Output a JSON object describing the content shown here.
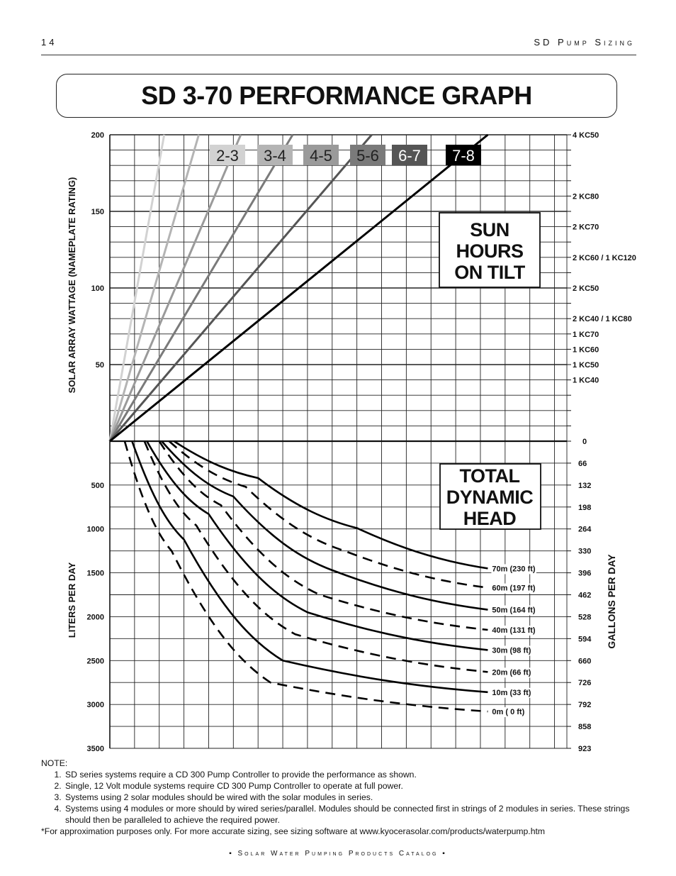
{
  "header": {
    "page_number": "14",
    "section": "SD Pump Sizing"
  },
  "title": "SD 3-70 PERFORMANCE GRAPH",
  "chart_data": [
    {
      "type": "line",
      "panel": "upper",
      "ylabel": "SOLAR ARRAY WATTAGE (NAMEPLATE RATING)",
      "y_ticks": [
        "200",
        "150",
        "100",
        "50"
      ],
      "ylim": [
        0,
        200
      ],
      "right_labels": [
        {
          "value": 200,
          "label": "4 KC50"
        },
        {
          "value": 160,
          "label": "2 KC80"
        },
        {
          "value": 140,
          "label": "2 KC70"
        },
        {
          "value": 120,
          "label": "2 KC60 / 1 KC120"
        },
        {
          "value": 100,
          "label": "2 KC50"
        },
        {
          "value": 80,
          "label": "2 KC40 / 1 KC80"
        },
        {
          "value": 70,
          "label": "1 KC70"
        },
        {
          "value": 60,
          "label": "1 KC60"
        },
        {
          "value": 50,
          "label": "1 KC50"
        },
        {
          "value": 40,
          "label": "1 KC40"
        }
      ],
      "legend_title": "SUN HOURS ON TILT",
      "series": [
        {
          "name": "2-3",
          "color": "#d2d2d2",
          "points": [
            [
              0,
              0
            ],
            [
              2.2,
              200
            ]
          ]
        },
        {
          "name": "3-4",
          "color": "#b4b4b4",
          "points": [
            [
              0,
              0
            ],
            [
              3.6,
              200
            ]
          ]
        },
        {
          "name": "4-5",
          "color": "#9a9a9a",
          "points": [
            [
              0,
              0
            ],
            [
              5.3,
              200
            ]
          ]
        },
        {
          "name": "5-6",
          "color": "#7a7a7a",
          "points": [
            [
              0,
              0
            ],
            [
              7.4,
              200
            ]
          ]
        },
        {
          "name": "6-7",
          "color": "#555555",
          "points": [
            [
              0,
              0
            ],
            [
              10.6,
              200
            ]
          ]
        },
        {
          "name": "7-8",
          "color": "#000000",
          "points": [
            [
              0,
              0
            ],
            [
              15.3,
              200
            ]
          ]
        }
      ],
      "grid": true,
      "x_range": [
        0,
        18.5
      ]
    },
    {
      "type": "line",
      "panel": "lower",
      "legend_title": "TOTAL DYNAMIC HEAD",
      "ylabel_left": "LITERS PER DAY",
      "ylabel_right": "GALLONS PER DAY",
      "left_ticks": [
        "500",
        "1000",
        "1500",
        "2000",
        "2500",
        "3000",
        "3500"
      ],
      "right_ticks": [
        "0",
        "66",
        "132",
        "198",
        "264",
        "330",
        "396",
        "462",
        "528",
        "594",
        "660",
        "726",
        "792",
        "858",
        "923"
      ],
      "ylim": [
        0,
        3500
      ],
      "series": [
        {
          "name": "70m (230 ft)",
          "dash": false,
          "points": [
            [
              2.6,
              0
            ],
            [
              6,
              420
            ],
            [
              10,
              990
            ],
            [
              15.3,
              1450
            ]
          ]
        },
        {
          "name": "60m (197 ft)",
          "dash": true,
          "points": [
            [
              2.4,
              0
            ],
            [
              5.5,
              520
            ],
            [
              9.5,
              1250
            ],
            [
              15.3,
              1670
            ]
          ]
        },
        {
          "name": "50m (164 ft)",
          "dash": false,
          "points": [
            [
              2.1,
              0
            ],
            [
              5,
              630
            ],
            [
              9,
              1470
            ],
            [
              15.3,
              1920
            ]
          ]
        },
        {
          "name": "40m (131 ft)",
          "dash": true,
          "points": [
            [
              2.0,
              0
            ],
            [
              4.5,
              730
            ],
            [
              8.5,
              1750
            ],
            [
              15.3,
              2150
            ]
          ]
        },
        {
          "name": "30m (98 ft)",
          "dash": false,
          "points": [
            [
              1.5,
              0
            ],
            [
              4,
              830
            ],
            [
              8,
              1950
            ],
            [
              15.3,
              2380
            ]
          ]
        },
        {
          "name": "20m (66 ft)",
          "dash": true,
          "points": [
            [
              1.4,
              0
            ],
            [
              3.5,
              960
            ],
            [
              7.5,
              2200
            ],
            [
              15.3,
              2630
            ]
          ]
        },
        {
          "name": "10m (33 ft)",
          "dash": false,
          "points": [
            [
              0.9,
              0
            ],
            [
              3,
              1120
            ],
            [
              7,
              2500
            ],
            [
              15.3,
              2860
            ]
          ]
        },
        {
          "name": "0m ( 0 ft)",
          "dash": true,
          "points": [
            [
              0.6,
              0
            ],
            [
              2.5,
              1250
            ],
            [
              6.5,
              2750
            ],
            [
              15.3,
              3080
            ]
          ]
        }
      ],
      "grid": true
    }
  ],
  "notes": {
    "heading": "NOTE:",
    "items": [
      "SD series systems require a CD 300 Pump Controller to provide the performance as shown.",
      "Single, 12 Volt module systems require CD 300 Pump Controller to operate at full power.",
      "Systems using 2 solar modules should be wired with the solar modules in series.",
      "Systems using 4 modules or more should by wired series/parallel.  Modules should be connected first in strings of 2 modules in series. These strings should then be paralleled to achieve the required power."
    ],
    "footnote": "*For approximation purposes only. For more accurate sizing, see sizing software at www.kyocerasolar.com/products/waterpump.htm"
  },
  "footer": "▪ Solar Water Pumping Products Catalog ▪"
}
